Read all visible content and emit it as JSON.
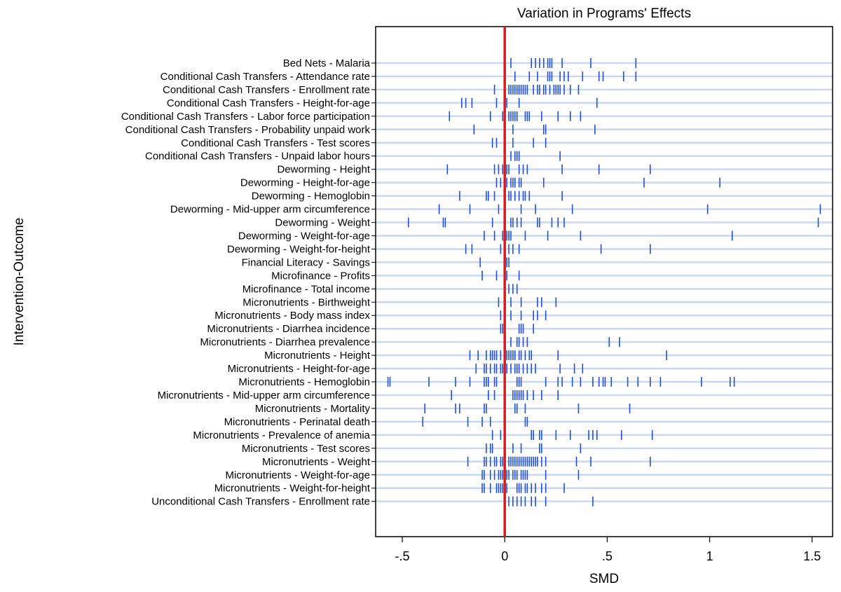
{
  "chart_data": {
    "type": "scatter",
    "title": "Variation in Programs' Effects",
    "xlabel": "SMD",
    "ylabel": "Intervention-Outcome",
    "xlim": [
      -0.63,
      1.6
    ],
    "xticks": [
      -0.5,
      0,
      0.5,
      1,
      1.5
    ],
    "xtick_labels": [
      "-.5",
      "0",
      ".5",
      "1",
      "1.5"
    ],
    "reference_line": 0,
    "colors": {
      "marks": "#1f4fd6",
      "gridlines": "#c9d7f2",
      "reference": "#e3161c"
    },
    "categories": [
      "Bed Nets - Malaria",
      "Conditional Cash Transfers - Attendance rate",
      "Conditional Cash Transfers - Enrollment rate",
      "Conditional Cash Transfers - Height-for-age",
      "Conditional Cash Transfers - Labor force participation",
      "Conditional Cash Transfers - Probability unpaid work",
      "Conditional Cash Transfers - Test scores",
      "Conditional Cash Transfers - Unpaid labor hours",
      "Deworming - Height",
      "Deworming - Height-for-age",
      "Deworming - Hemoglobin",
      "Deworming - Mid-upper arm circumference",
      "Deworming - Weight",
      "Deworming - Weight-for-age",
      "Deworming - Weight-for-height",
      "Financial Literacy - Savings",
      "Microfinance - Profits",
      "Microfinance - Total income",
      "Micronutrients - Birthweight",
      "Micronutrients - Body mass index",
      "Micronutrients - Diarrhea incidence",
      "Micronutrients - Diarrhea prevalence",
      "Micronutrients - Height",
      "Micronutrients - Height-for-age",
      "Micronutrients - Hemoglobin",
      "Micronutrients - Mid-upper arm circumference",
      "Micronutrients - Mortality",
      "Micronutrients - Perinatal death",
      "Micronutrients - Prevalence of anemia",
      "Micronutrients - Test scores",
      "Micronutrients - Weight",
      "Micronutrients - Weight-for-age",
      "Micronutrients - Weight-for-height",
      "Unconditional Cash Transfers - Enrollment rate"
    ],
    "values": [
      [
        0.03,
        0.13,
        0.15,
        0.17,
        0.19,
        0.21,
        0.22,
        0.23,
        0.28,
        0.42,
        0.64
      ],
      [
        0.05,
        0.12,
        0.16,
        0.21,
        0.22,
        0.23,
        0.27,
        0.29,
        0.31,
        0.38,
        0.46,
        0.48,
        0.58,
        0.64
      ],
      [
        -0.05,
        0.0,
        0.02,
        0.03,
        0.04,
        0.05,
        0.06,
        0.07,
        0.07,
        0.08,
        0.09,
        0.1,
        0.11,
        0.14,
        0.16,
        0.17,
        0.19,
        0.2,
        0.22,
        0.24,
        0.25,
        0.26,
        0.27,
        0.29,
        0.32,
        0.36
      ],
      [
        -0.21,
        -0.19,
        -0.16,
        -0.04,
        0.01,
        0.07,
        0.45
      ],
      [
        -0.27,
        -0.07,
        -0.01,
        0.02,
        0.03,
        0.04,
        0.05,
        0.06,
        0.1,
        0.11,
        0.12,
        0.18,
        0.26,
        0.32,
        0.37
      ],
      [
        -0.15,
        0.04,
        0.19,
        0.2,
        0.44
      ],
      [
        -0.06,
        -0.04,
        0.04,
        0.14,
        0.2
      ],
      [
        0.03,
        0.05,
        0.06,
        0.07,
        0.27
      ],
      [
        -0.28,
        -0.05,
        -0.03,
        -0.01,
        0.01,
        0.02,
        0.07,
        0.09,
        0.11,
        0.28,
        0.46,
        0.71
      ],
      [
        -0.04,
        -0.02,
        0.01,
        0.03,
        0.04,
        0.05,
        0.07,
        0.08,
        0.19,
        0.68,
        1.05
      ],
      [
        -0.22,
        -0.09,
        -0.08,
        -0.05,
        0.0,
        0.02,
        0.03,
        0.05,
        0.07,
        0.09,
        0.1,
        0.12,
        0.28
      ],
      [
        -0.32,
        -0.17,
        -0.03,
        0.08,
        0.15,
        0.33,
        0.99,
        1.54
      ],
      [
        -0.47,
        -0.3,
        -0.29,
        -0.06,
        0.0,
        0.03,
        0.04,
        0.06,
        0.08,
        0.16,
        0.17,
        0.23,
        0.26,
        0.29,
        1.53
      ],
      [
        -0.1,
        -0.05,
        -0.01,
        0.01,
        0.02,
        0.03,
        0.1,
        0.21,
        0.37,
        1.11
      ],
      [
        -0.19,
        -0.16,
        -0.02,
        0.02,
        0.04,
        0.07,
        0.47,
        0.71
      ],
      [
        -0.12,
        0.0,
        0.01,
        0.02
      ],
      [
        -0.11,
        -0.04,
        0.0,
        0.01,
        0.07
      ],
      [
        0.0,
        0.02,
        0.04,
        0.06
      ],
      [
        -0.03,
        0.03,
        0.08,
        0.16,
        0.18,
        0.25
      ],
      [
        -0.02,
        0.03,
        0.08,
        0.14,
        0.16,
        0.2
      ],
      [
        -0.02,
        -0.01,
        0.07,
        0.08,
        0.09,
        0.14
      ],
      [
        0.03,
        0.06,
        0.07,
        0.09,
        0.11,
        0.51,
        0.56
      ],
      [
        -0.17,
        -0.13,
        -0.09,
        -0.07,
        -0.06,
        -0.05,
        -0.04,
        -0.02,
        0.01,
        0.02,
        0.03,
        0.04,
        0.05,
        0.07,
        0.08,
        0.1,
        0.12,
        0.13,
        0.26,
        0.79
      ],
      [
        -0.14,
        -0.1,
        -0.09,
        -0.07,
        -0.05,
        -0.04,
        -0.02,
        -0.01,
        0.0,
        0.01,
        0.03,
        0.05,
        0.06,
        0.07,
        0.09,
        0.11,
        0.13,
        0.15,
        0.27,
        0.34,
        0.38
      ],
      [
        -0.57,
        -0.56,
        -0.37,
        -0.24,
        -0.17,
        -0.1,
        -0.09,
        -0.08,
        -0.05,
        -0.04,
        0.06,
        0.07,
        0.08,
        0.2,
        0.26,
        0.28,
        0.33,
        0.37,
        0.43,
        0.46,
        0.48,
        0.49,
        0.52,
        0.6,
        0.65,
        0.71,
        0.76,
        0.96,
        1.1,
        1.12
      ],
      [
        -0.26,
        -0.08,
        -0.05,
        0.0,
        0.04,
        0.05,
        0.06,
        0.07,
        0.08,
        0.09,
        0.11,
        0.14,
        0.18,
        0.26
      ],
      [
        -0.39,
        -0.24,
        -0.22,
        -0.1,
        -0.09,
        0.05,
        0.06,
        0.1,
        0.36,
        0.61
      ],
      [
        -0.4,
        -0.18,
        -0.11,
        -0.07,
        0.1,
        0.11
      ],
      [
        -0.06,
        -0.02,
        0.13,
        0.14,
        0.17,
        0.18,
        0.25,
        0.32,
        0.41,
        0.43,
        0.45,
        0.57,
        0.72
      ],
      [
        -0.09,
        -0.07,
        -0.06,
        0.04,
        0.08,
        0.17,
        0.18,
        0.37
      ],
      [
        -0.18,
        -0.1,
        -0.09,
        -0.07,
        -0.05,
        -0.04,
        -0.02,
        -0.01,
        0.02,
        0.03,
        0.04,
        0.05,
        0.06,
        0.07,
        0.08,
        0.09,
        0.1,
        0.11,
        0.12,
        0.13,
        0.14,
        0.15,
        0.16,
        0.18,
        0.2,
        0.35,
        0.42,
        0.71
      ],
      [
        -0.11,
        -0.1,
        -0.07,
        -0.05,
        -0.03,
        -0.02,
        -0.01,
        0.0,
        0.01,
        0.02,
        0.04,
        0.05,
        0.06,
        0.08,
        0.09,
        0.1,
        0.11,
        0.2,
        0.36
      ],
      [
        -0.11,
        -0.1,
        -0.07,
        -0.04,
        -0.03,
        -0.02,
        -0.01,
        0.0,
        0.01,
        0.06,
        0.07,
        0.08,
        0.1,
        0.11,
        0.13,
        0.15,
        0.18,
        0.2,
        0.29
      ],
      [
        0.02,
        0.04,
        0.06,
        0.08,
        0.1,
        0.13,
        0.15,
        0.2,
        0.43
      ]
    ]
  }
}
